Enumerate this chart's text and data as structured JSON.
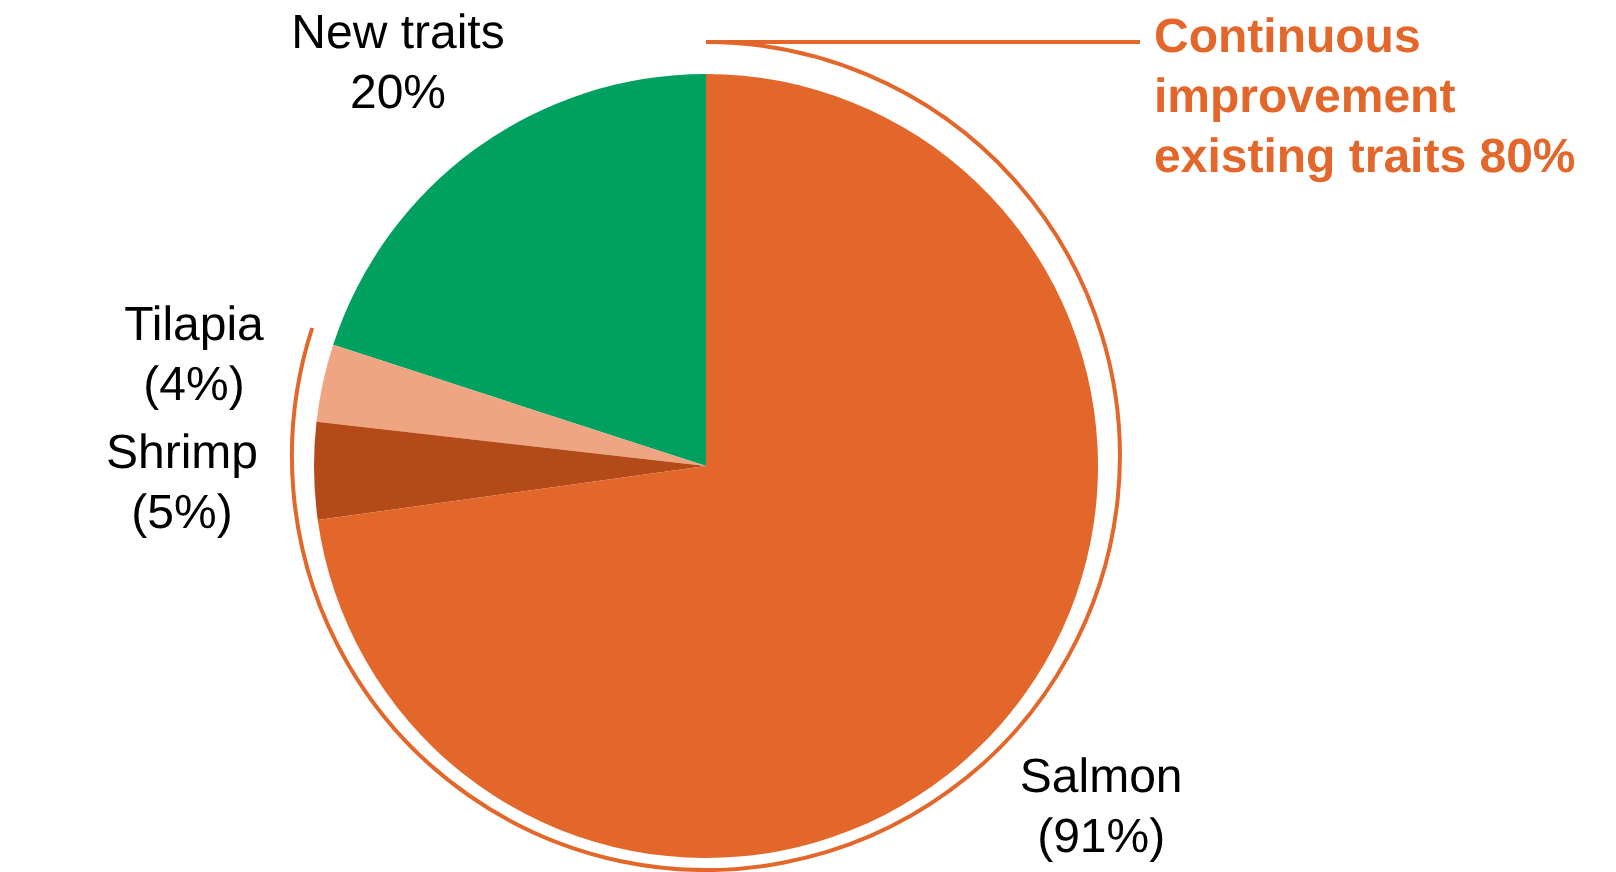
{
  "chart_data": {
    "type": "pie",
    "categories": [
      "New traits",
      "Tilapia",
      "Shrimp",
      "Salmon"
    ],
    "values": [
      20,
      3.2,
      4,
      72.8
    ],
    "value_labels": [
      "20%",
      null,
      null,
      null
    ],
    "colors": [
      "#00a060",
      "#f0a582",
      "#b34a18",
      "#e3672b"
    ],
    "annotations": [
      "Continuous improvement existing traits 80%",
      "(4%)",
      "(5%)",
      "(91%)"
    ],
    "legend": false
  }
}
